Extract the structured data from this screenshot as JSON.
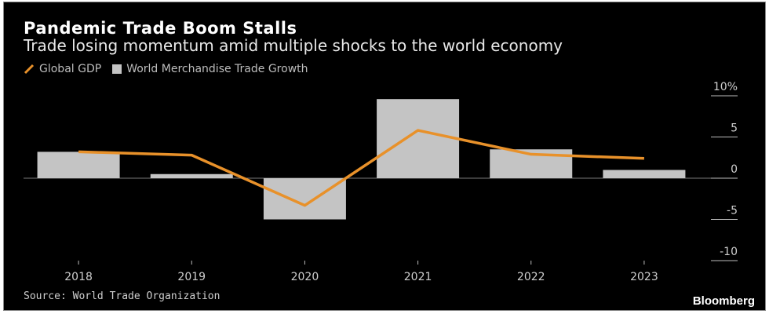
{
  "title": "Pandemic Trade Boom Stalls",
  "subtitle": "Trade losing momentum amid multiple shocks to the world economy",
  "legend": [
    {
      "label": "Global GDP",
      "type": "line",
      "color": "#e8912a"
    },
    {
      "label": "World Merchandise Trade Growth",
      "type": "bar",
      "color": "#c4c4c4"
    }
  ],
  "source": "Source: World Trade Organization",
  "brand": "Bloomberg",
  "chart_data": {
    "type": "bar",
    "title": "Pandemic Trade Boom Stalls",
    "subtitle": "Trade losing momentum amid multiple shocks to the world economy",
    "categories": [
      "2018",
      "2019",
      "2020",
      "2021",
      "2022",
      "2023"
    ],
    "series": [
      {
        "name": "World Merchandise Trade Growth",
        "type": "bar",
        "color": "#c4c4c4",
        "values": [
          3.2,
          0.5,
          -5.0,
          9.6,
          3.5,
          1.0
        ]
      },
      {
        "name": "Global GDP",
        "type": "line",
        "color": "#e8912a",
        "values": [
          3.2,
          2.8,
          -3.3,
          5.8,
          2.9,
          2.4
        ]
      }
    ],
    "yticks": [
      10,
      5,
      0,
      -5,
      -10
    ],
    "ytick_labels": [
      "10%",
      "5",
      "0",
      "-5",
      "-10"
    ],
    "ylim": [
      -11,
      11
    ],
    "xlabel": "",
    "ylabel": "",
    "y_axis_position": "right",
    "legend_position": "top-left",
    "grid": false
  }
}
